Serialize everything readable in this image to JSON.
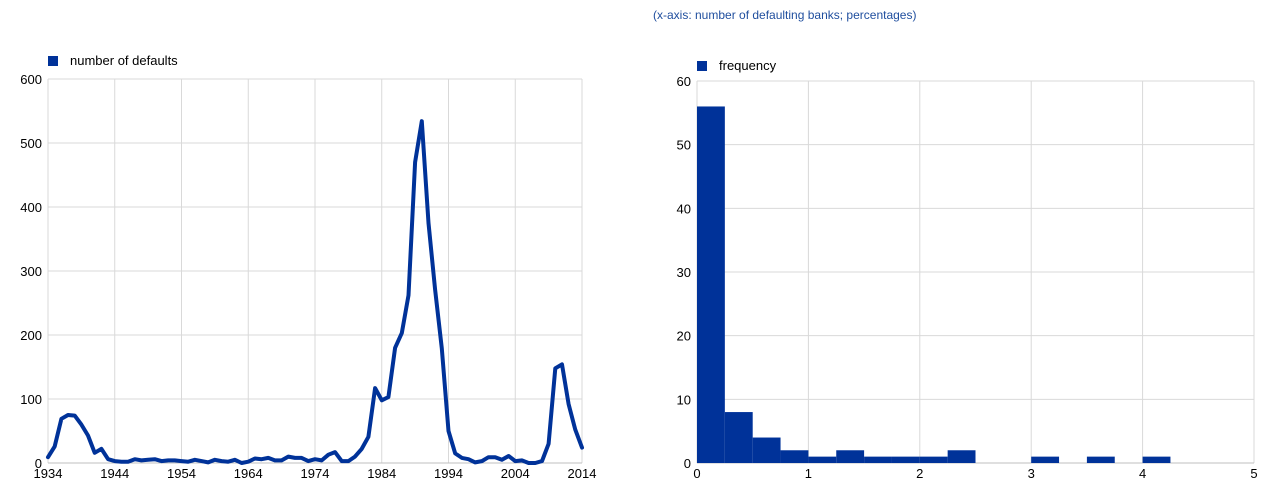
{
  "subtitle": "(x-axis: number of defaulting banks; percentages)",
  "colors": {
    "series": "#003299",
    "grid": "#d9d9d9",
    "axis": "#bfbfbf"
  },
  "chart_data": [
    {
      "type": "line",
      "legend": "number of defaults",
      "legend_placement": "top-left",
      "grid": true,
      "xlim": [
        1934,
        2014
      ],
      "ylim": [
        0,
        600
      ],
      "x_ticks": [
        1934,
        1944,
        1954,
        1964,
        1974,
        1984,
        1994,
        2004,
        2014
      ],
      "y_ticks": [
        0,
        100,
        200,
        300,
        400,
        500,
        600
      ],
      "x": [
        1934,
        1935,
        1936,
        1937,
        1938,
        1939,
        1940,
        1941,
        1942,
        1943,
        1944,
        1945,
        1946,
        1947,
        1948,
        1949,
        1950,
        1951,
        1952,
        1953,
        1954,
        1955,
        1956,
        1957,
        1958,
        1959,
        1960,
        1961,
        1962,
        1963,
        1964,
        1965,
        1966,
        1967,
        1968,
        1969,
        1970,
        1971,
        1972,
        1973,
        1974,
        1975,
        1976,
        1977,
        1978,
        1979,
        1980,
        1981,
        1982,
        1983,
        1984,
        1985,
        1986,
        1987,
        1988,
        1989,
        1990,
        1991,
        1992,
        1993,
        1994,
        1995,
        1996,
        1997,
        1998,
        1999,
        2000,
        2001,
        2002,
        2003,
        2004,
        2005,
        2006,
        2007,
        2008,
        2009,
        2010,
        2011,
        2012,
        2013,
        2014
      ],
      "values": [
        9,
        26,
        69,
        75,
        74,
        60,
        43,
        16,
        22,
        6,
        3,
        2,
        2,
        6,
        4,
        5,
        6,
        3,
        4,
        4,
        3,
        2,
        5,
        3,
        1,
        5,
        3,
        2,
        5,
        0,
        2,
        7,
        6,
        8,
        4,
        4,
        10,
        8,
        8,
        3,
        6,
        4,
        13,
        17,
        3,
        3,
        10,
        22,
        41,
        117,
        98,
        103,
        180,
        203,
        262,
        470,
        534,
        375,
        271,
        179,
        50,
        15,
        8,
        6,
        1,
        3,
        9,
        9,
        5,
        11,
        3,
        4,
        0,
        0,
        3,
        30,
        148,
        154,
        92,
        52,
        24
      ]
    },
    {
      "type": "bar",
      "legend": "frequency",
      "legend_placement": "top-left",
      "grid": true,
      "xlim": [
        0,
        5
      ],
      "ylim": [
        0,
        60
      ],
      "x_ticks": [
        0,
        1,
        2,
        3,
        4,
        5
      ],
      "y_ticks": [
        0,
        10,
        20,
        30,
        40,
        50,
        60
      ],
      "bin_width": 0.25,
      "bin_starts": [
        0,
        0.25,
        0.5,
        0.75,
        1.0,
        1.25,
        1.5,
        1.75,
        2.0,
        2.25,
        2.5,
        2.75,
        3.0,
        3.25,
        3.5,
        3.75,
        4.0,
        4.25,
        4.5,
        4.75
      ],
      "values": [
        56,
        8,
        4,
        2,
        1,
        2,
        1,
        1,
        1,
        2,
        0,
        0,
        1,
        0,
        1,
        0,
        1,
        0,
        0,
        0
      ]
    }
  ]
}
